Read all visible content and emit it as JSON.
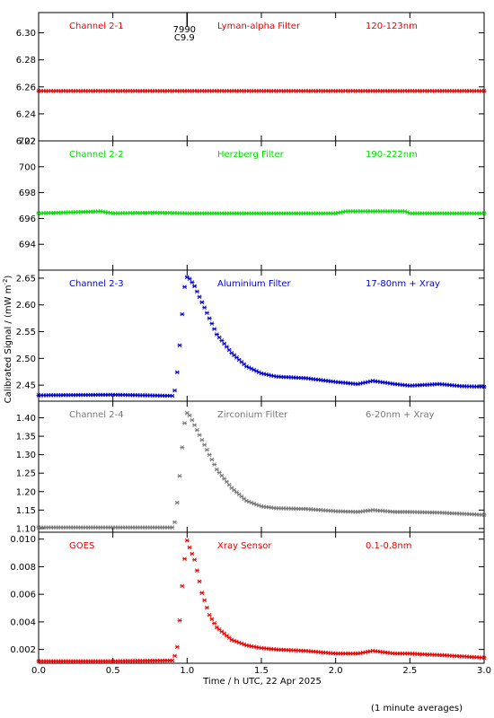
{
  "colors": {
    "channel_2_1": "#ee0000",
    "channel_2_2": "#00dd00",
    "channel_2_3": "#0000cc",
    "channel_2_4": "#777777",
    "goes": "#ee0000",
    "axes": "#000000"
  },
  "xaxis": {
    "label": "Time / h UTC, 22 Apr 2025",
    "ticks": [
      "0.0",
      "0.5",
      "1.0",
      "1.5",
      "2.0",
      "2.5",
      "3.0"
    ],
    "xlim": [
      0.0,
      3.0
    ]
  },
  "yaxis": {
    "shared_label": "Calibrated Signal / (mW m",
    "shared_label_sup": "-2",
    "shared_label_end": ")"
  },
  "event_marker": {
    "line1": "7990",
    "line2": "C9.9"
  },
  "footnote": "(1 minute averages)",
  "chart_data": [
    {
      "type": "scatter",
      "channel": "Channel 2-1",
      "filter": "Lyman-alpha Filter",
      "band": "120-123nm",
      "color": "#ee0000",
      "ylim": [
        6.22,
        6.315
      ],
      "yticks": [
        "6.22",
        "6.24",
        "6.26",
        "6.28",
        "6.30"
      ],
      "xlim": [
        0.0,
        3.0
      ],
      "x": [
        0.0,
        0.5,
        1.0,
        1.5,
        2.0,
        2.5,
        3.0
      ],
      "y": [
        6.257,
        6.257,
        6.257,
        6.257,
        6.257,
        6.257,
        6.257
      ]
    },
    {
      "type": "scatter",
      "channel": "Channel 2-2",
      "filter": "Herzberg Filter",
      "band": "190-222nm",
      "color": "#00dd00",
      "ylim": [
        692.0,
        702.0
      ],
      "yticks": [
        "694",
        "696",
        "698",
        "700",
        "702"
      ],
      "xlim": [
        0.0,
        3.0
      ],
      "x": [
        0.0,
        0.42,
        0.5,
        0.8,
        1.0,
        1.5,
        2.0,
        2.07,
        2.47,
        2.5,
        3.0
      ],
      "y": [
        696.4,
        696.55,
        696.4,
        696.45,
        696.4,
        696.4,
        696.4,
        696.55,
        696.55,
        696.4,
        696.4
      ]
    },
    {
      "type": "scatter",
      "channel": "Channel 2-3",
      "filter": "Aluminium Filter",
      "band": "17-80nm + Xray",
      "color": "#0000cc",
      "ylim": [
        2.42,
        2.665
      ],
      "yticks": [
        "2.45",
        "2.50",
        "2.55",
        "2.60",
        "2.65"
      ],
      "xlim": [
        0.0,
        3.0
      ],
      "x": [
        0.0,
        0.5,
        0.9,
        0.92,
        0.94,
        0.96,
        0.98,
        1.0,
        1.02,
        1.05,
        1.1,
        1.15,
        1.2,
        1.3,
        1.4,
        1.5,
        1.6,
        1.8,
        2.0,
        2.15,
        2.25,
        2.4,
        2.5,
        2.7,
        2.85,
        3.0
      ],
      "y": [
        2.431,
        2.432,
        2.43,
        2.442,
        2.49,
        2.559,
        2.63,
        2.652,
        2.648,
        2.635,
        2.605,
        2.575,
        2.545,
        2.51,
        2.485,
        2.472,
        2.466,
        2.463,
        2.456,
        2.452,
        2.458,
        2.452,
        2.449,
        2.452,
        2.448,
        2.447
      ]
    },
    {
      "type": "scatter",
      "channel": "Channel 2-4",
      "filter": "Zirconium Filter",
      "band": "6-20nm + Xray",
      "color": "#777777",
      "ylim": [
        1.09,
        1.445
      ],
      "yticks": [
        "1.10",
        "1.15",
        "1.20",
        "1.25",
        "1.30",
        "1.35",
        "1.40"
      ],
      "xlim": [
        0.0,
        3.0
      ],
      "x": [
        0.0,
        0.5,
        0.9,
        0.92,
        0.94,
        0.96,
        0.98,
        1.0,
        1.02,
        1.05,
        1.1,
        1.15,
        1.2,
        1.3,
        1.4,
        1.5,
        1.6,
        1.8,
        2.0,
        2.15,
        2.25,
        2.4,
        2.5,
        2.7,
        2.85,
        3.0
      ],
      "y": [
        1.103,
        1.103,
        1.103,
        1.12,
        1.195,
        1.29,
        1.38,
        1.413,
        1.405,
        1.38,
        1.34,
        1.3,
        1.26,
        1.21,
        1.175,
        1.16,
        1.155,
        1.153,
        1.147,
        1.145,
        1.15,
        1.145,
        1.145,
        1.143,
        1.14,
        1.137
      ]
    },
    {
      "type": "scatter",
      "channel": "GOES",
      "filter": "Xray Sensor",
      "band": "0.1-0.8nm",
      "color": "#ee0000",
      "ylim": [
        0.001,
        0.0105
      ],
      "yticks": [
        "0.002",
        "0.004",
        "0.006",
        "0.008",
        "0.010"
      ],
      "xlim": [
        0.0,
        3.0
      ],
      "x": [
        0.0,
        0.5,
        0.9,
        0.93,
        0.95,
        0.97,
        0.99,
        1.0,
        1.02,
        1.05,
        1.08,
        1.1,
        1.15,
        1.2,
        1.3,
        1.4,
        1.5,
        1.6,
        1.8,
        2.0,
        2.15,
        2.25,
        2.4,
        2.5,
        2.7,
        2.85,
        3.0
      ],
      "y": [
        0.00115,
        0.00115,
        0.0012,
        0.0018,
        0.0041,
        0.0071,
        0.0093,
        0.0099,
        0.0093,
        0.0085,
        0.0071,
        0.0061,
        0.0045,
        0.0036,
        0.0027,
        0.0023,
        0.0021,
        0.002,
        0.0019,
        0.0017,
        0.0017,
        0.0019,
        0.0017,
        0.0017,
        0.0016,
        0.0015,
        0.0014
      ]
    }
  ]
}
